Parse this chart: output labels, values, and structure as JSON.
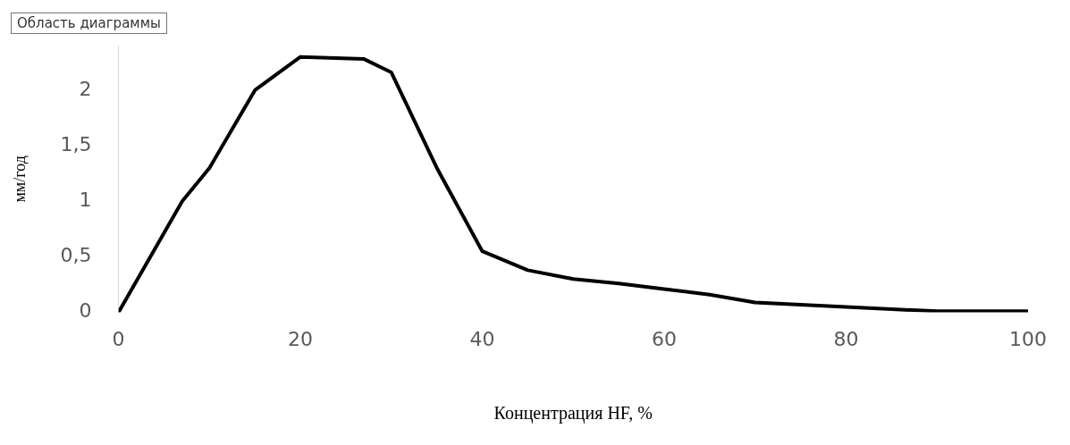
{
  "chart_data": {
    "type": "line",
    "xlabel": "Концентрация HF, %",
    "ylabel": "мм/год",
    "annotations": [
      "Область диаграммы"
    ],
    "series": [
      {
        "color": "#000000",
        "x": [
          0,
          7,
          10,
          15,
          20,
          27,
          30,
          35,
          40,
          45,
          50,
          55,
          60,
          65,
          70,
          80,
          90,
          100
        ],
        "values": [
          0,
          1.0,
          1.3,
          2.0,
          2.3,
          2.28,
          2.16,
          1.3,
          0.55,
          0.38,
          0.3,
          0.26,
          0.21,
          0.16,
          0.09,
          0.05,
          0.01,
          0.01
        ]
      }
    ],
    "xlim": [
      0,
      100
    ],
    "xticks": [
      0,
      20,
      40,
      60,
      80,
      100
    ],
    "ylim": [
      0,
      2.4
    ],
    "yticks": [
      0,
      {
        "value": 0.5,
        "label": "0,5"
      },
      1,
      {
        "value": 1.5,
        "label": "1,5"
      },
      2
    ],
    "grid": false,
    "legend": false,
    "marker": "none",
    "line_style": "solid"
  }
}
